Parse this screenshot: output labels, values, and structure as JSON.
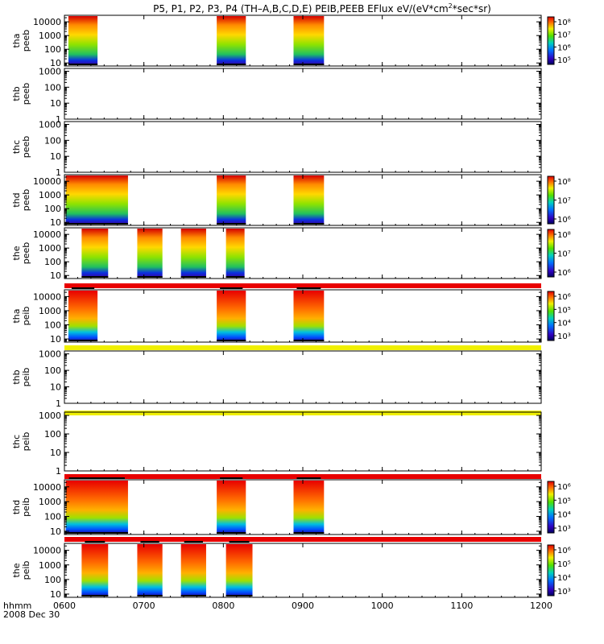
{
  "title": {
    "main": "P5, P1, P2, P3, P4 (TH–A,B,C,D,E) PEIB,PEEB EFlux eV/(eV*cm",
    "sup": "2",
    "tail": "*sec*sr)"
  },
  "chart_data": {
    "type": "heatmap",
    "x_ticks": [
      "0600",
      "0700",
      "0800",
      "0900",
      "1000",
      "1100",
      "1200"
    ],
    "x_label": "hhmm",
    "date_label": "2008 Dec 30",
    "x_range": [
      "0600",
      "1200"
    ],
    "y_scale": "log",
    "colors": {
      "red": "#e80000",
      "yellow": "#f0f000",
      "black": "#000000"
    },
    "panels": [
      {
        "probe": "tha",
        "instrument": "peeb",
        "y_ticks": [
          "10",
          "100",
          "1000",
          "10000"
        ],
        "y_range": [
          6,
          30000
        ],
        "colorbar": [
          "10⁵",
          "10⁶",
          "10⁷",
          "10⁸"
        ],
        "bar_above": null,
        "intervals": [
          [
            "0603",
            "0625"
          ],
          [
            "0755",
            "0817"
          ],
          [
            "0853",
            "0916"
          ]
        ],
        "profile": "electron"
      },
      {
        "probe": "thb",
        "instrument": "peeb",
        "y_ticks": [
          "1",
          "10",
          "100",
          "1000"
        ],
        "y_range": [
          1,
          1500
        ],
        "colorbar": null,
        "bar_above": null,
        "intervals": [],
        "profile": "electron"
      },
      {
        "probe": "thc",
        "instrument": "peeb",
        "y_ticks": [
          "1",
          "10",
          "100",
          "1000"
        ],
        "y_range": [
          1,
          1500
        ],
        "colorbar": null,
        "bar_above": null,
        "intervals": [],
        "profile": "electron"
      },
      {
        "probe": "thd",
        "instrument": "peeb",
        "y_ticks": [
          "10",
          "100",
          "1000",
          "10000"
        ],
        "y_range": [
          6,
          30000
        ],
        "colorbar": [
          "10⁶",
          "10⁷",
          "10⁸"
        ],
        "bar_above": null,
        "intervals": [
          [
            "0601",
            "0648"
          ],
          [
            "0755",
            "0817"
          ],
          [
            "0853",
            "0916"
          ]
        ],
        "profile": "electron"
      },
      {
        "probe": "the",
        "instrument": "peeb",
        "y_ticks": [
          "10",
          "100",
          "1000",
          "10000"
        ],
        "y_range": [
          6,
          30000
        ],
        "colorbar": [
          "10⁶",
          "10⁷",
          "10⁸"
        ],
        "bar_above": null,
        "intervals": [
          [
            "0613",
            "0633"
          ],
          [
            "0655",
            "0714"
          ],
          [
            "0728",
            "0747"
          ],
          [
            "0802",
            "0816"
          ]
        ],
        "profile": "electron"
      },
      {
        "probe": "tha",
        "instrument": "peib",
        "y_ticks": [
          "10",
          "100",
          "1000",
          "10000"
        ],
        "y_range": [
          6,
          30000
        ],
        "colorbar": [
          "10³",
          "10⁴",
          "10⁵",
          "10⁶"
        ],
        "bar_above": "red",
        "intervals": [
          [
            "0603",
            "0625"
          ],
          [
            "0755",
            "0817"
          ],
          [
            "0853",
            "0916"
          ]
        ],
        "profile": "ion"
      },
      {
        "probe": "thb",
        "instrument": "peib",
        "y_ticks": [
          "1",
          "10",
          "100",
          "1000"
        ],
        "y_range": [
          1,
          1500
        ],
        "colorbar": null,
        "bar_above": "yellow",
        "intervals": [],
        "profile": "ion"
      },
      {
        "probe": "thc",
        "instrument": "peib",
        "y_ticks": [
          "1",
          "10",
          "100",
          "1000"
        ],
        "y_range": [
          1,
          1500
        ],
        "colorbar": null,
        "bar_above": "yellow",
        "intervals": [],
        "profile": "ion"
      },
      {
        "probe": "thd",
        "instrument": "peib",
        "y_ticks": [
          "10",
          "100",
          "1000",
          "10000"
        ],
        "y_range": [
          6,
          30000
        ],
        "colorbar": [
          "10³",
          "10⁴",
          "10⁵",
          "10⁶"
        ],
        "bar_above": "red",
        "intervals": [
          [
            "0601",
            "0648"
          ],
          [
            "0755",
            "0817"
          ],
          [
            "0853",
            "0916"
          ]
        ],
        "profile": "ion"
      },
      {
        "probe": "the",
        "instrument": "peib",
        "y_ticks": [
          "10",
          "100",
          "1000",
          "10000"
        ],
        "y_range": [
          6,
          30000
        ],
        "colorbar": [
          "10³",
          "10⁴",
          "10⁵",
          "10⁶"
        ],
        "bar_above": "red",
        "intervals": [
          [
            "0613",
            "0633"
          ],
          [
            "0655",
            "0714"
          ],
          [
            "0728",
            "0747"
          ],
          [
            "0802",
            "0822"
          ]
        ],
        "profile": "ion"
      }
    ]
  }
}
